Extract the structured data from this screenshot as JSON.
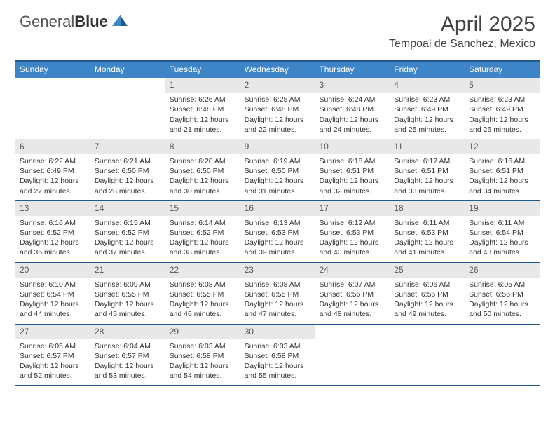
{
  "logo": {
    "text1": "General",
    "text2": "Blue"
  },
  "title": "April 2025",
  "location": "Tempoal de Sanchez, Mexico",
  "colors": {
    "header_bar": "#3d85c6",
    "header_border": "#235a8c",
    "daynum_bg": "#e8e8e8",
    "text": "#333333"
  },
  "weekdays": [
    "Sunday",
    "Monday",
    "Tuesday",
    "Wednesday",
    "Thursday",
    "Friday",
    "Saturday"
  ],
  "weeks": [
    [
      null,
      null,
      {
        "n": "1",
        "sr": "6:26 AM",
        "ss": "6:48 PM",
        "dl": "12 hours and 21 minutes."
      },
      {
        "n": "2",
        "sr": "6:25 AM",
        "ss": "6:48 PM",
        "dl": "12 hours and 22 minutes."
      },
      {
        "n": "3",
        "sr": "6:24 AM",
        "ss": "6:48 PM",
        "dl": "12 hours and 24 minutes."
      },
      {
        "n": "4",
        "sr": "6:23 AM",
        "ss": "6:49 PM",
        "dl": "12 hours and 25 minutes."
      },
      {
        "n": "5",
        "sr": "6:23 AM",
        "ss": "6:49 PM",
        "dl": "12 hours and 26 minutes."
      }
    ],
    [
      {
        "n": "6",
        "sr": "6:22 AM",
        "ss": "6:49 PM",
        "dl": "12 hours and 27 minutes."
      },
      {
        "n": "7",
        "sr": "6:21 AM",
        "ss": "6:50 PM",
        "dl": "12 hours and 28 minutes."
      },
      {
        "n": "8",
        "sr": "6:20 AM",
        "ss": "6:50 PM",
        "dl": "12 hours and 30 minutes."
      },
      {
        "n": "9",
        "sr": "6:19 AM",
        "ss": "6:50 PM",
        "dl": "12 hours and 31 minutes."
      },
      {
        "n": "10",
        "sr": "6:18 AM",
        "ss": "6:51 PM",
        "dl": "12 hours and 32 minutes."
      },
      {
        "n": "11",
        "sr": "6:17 AM",
        "ss": "6:51 PM",
        "dl": "12 hours and 33 minutes."
      },
      {
        "n": "12",
        "sr": "6:16 AM",
        "ss": "6:51 PM",
        "dl": "12 hours and 34 minutes."
      }
    ],
    [
      {
        "n": "13",
        "sr": "6:16 AM",
        "ss": "6:52 PM",
        "dl": "12 hours and 36 minutes."
      },
      {
        "n": "14",
        "sr": "6:15 AM",
        "ss": "6:52 PM",
        "dl": "12 hours and 37 minutes."
      },
      {
        "n": "15",
        "sr": "6:14 AM",
        "ss": "6:52 PM",
        "dl": "12 hours and 38 minutes."
      },
      {
        "n": "16",
        "sr": "6:13 AM",
        "ss": "6:53 PM",
        "dl": "12 hours and 39 minutes."
      },
      {
        "n": "17",
        "sr": "6:12 AM",
        "ss": "6:53 PM",
        "dl": "12 hours and 40 minutes."
      },
      {
        "n": "18",
        "sr": "6:11 AM",
        "ss": "6:53 PM",
        "dl": "12 hours and 41 minutes."
      },
      {
        "n": "19",
        "sr": "6:11 AM",
        "ss": "6:54 PM",
        "dl": "12 hours and 43 minutes."
      }
    ],
    [
      {
        "n": "20",
        "sr": "6:10 AM",
        "ss": "6:54 PM",
        "dl": "12 hours and 44 minutes."
      },
      {
        "n": "21",
        "sr": "6:09 AM",
        "ss": "6:55 PM",
        "dl": "12 hours and 45 minutes."
      },
      {
        "n": "22",
        "sr": "6:08 AM",
        "ss": "6:55 PM",
        "dl": "12 hours and 46 minutes."
      },
      {
        "n": "23",
        "sr": "6:08 AM",
        "ss": "6:55 PM",
        "dl": "12 hours and 47 minutes."
      },
      {
        "n": "24",
        "sr": "6:07 AM",
        "ss": "6:56 PM",
        "dl": "12 hours and 48 minutes."
      },
      {
        "n": "25",
        "sr": "6:06 AM",
        "ss": "6:56 PM",
        "dl": "12 hours and 49 minutes."
      },
      {
        "n": "26",
        "sr": "6:05 AM",
        "ss": "6:56 PM",
        "dl": "12 hours and 50 minutes."
      }
    ],
    [
      {
        "n": "27",
        "sr": "6:05 AM",
        "ss": "6:57 PM",
        "dl": "12 hours and 52 minutes."
      },
      {
        "n": "28",
        "sr": "6:04 AM",
        "ss": "6:57 PM",
        "dl": "12 hours and 53 minutes."
      },
      {
        "n": "29",
        "sr": "6:03 AM",
        "ss": "6:58 PM",
        "dl": "12 hours and 54 minutes."
      },
      {
        "n": "30",
        "sr": "6:03 AM",
        "ss": "6:58 PM",
        "dl": "12 hours and 55 minutes."
      },
      null,
      null,
      null
    ]
  ],
  "labels": {
    "sunrise": "Sunrise:",
    "sunset": "Sunset:",
    "daylight": "Daylight:"
  }
}
